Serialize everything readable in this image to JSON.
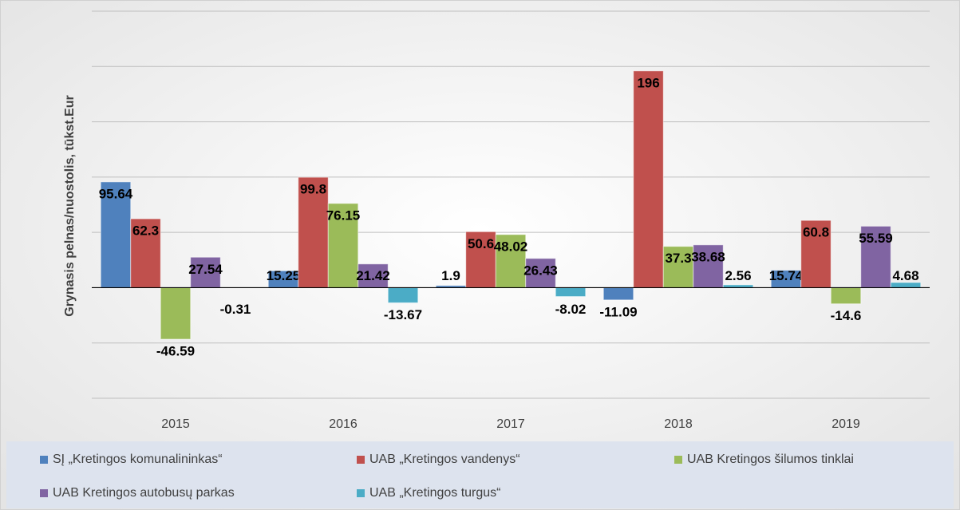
{
  "chart_data": {
    "type": "bar",
    "y_label": "Grynasis pelnas/nuostolis, tūkst.Eur",
    "categories": [
      "2015",
      "2016",
      "2017",
      "2018",
      "2019"
    ],
    "series": [
      {
        "name": "SĮ „Kretingos komunalininkas“",
        "color": "#4f81bd",
        "values": [
          95.64,
          15.25,
          1.9,
          -11.09,
          15.74
        ]
      },
      {
        "name": "UAB „Kretingos vandenys“",
        "color": "#c0504d",
        "values": [
          62.3,
          99.8,
          50.6,
          196,
          60.8
        ]
      },
      {
        "name": "UAB Kretingos šilumos tinklai",
        "color": "#9bbb59",
        "values": [
          -46.59,
          76.15,
          48.02,
          37.3,
          -14.6
        ]
      },
      {
        "name": "UAB Kretingos autobusų parkas",
        "color": "#8064a2",
        "values": [
          27.54,
          21.42,
          26.43,
          38.68,
          55.59
        ]
      },
      {
        "name": "UAB „Kretingos turgus“",
        "color": "#4bacc6",
        "values": [
          -0.31,
          -13.67,
          -8.02,
          2.56,
          4.68
        ]
      }
    ],
    "ylim": [
      -100,
      250
    ],
    "yticks": [
      -100,
      -50,
      0,
      50,
      100,
      150,
      200,
      250
    ],
    "grid": true
  }
}
